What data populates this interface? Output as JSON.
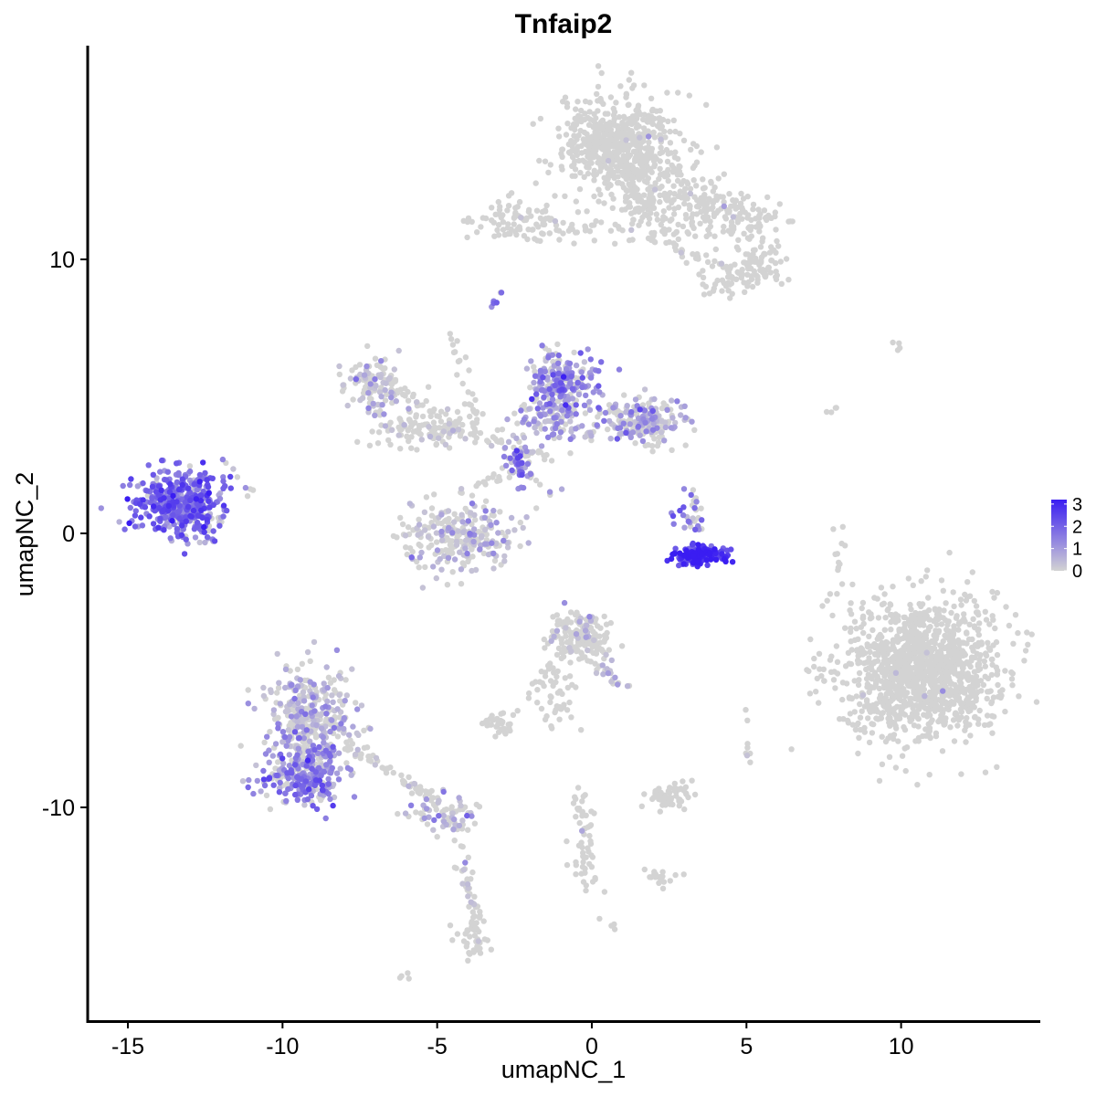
{
  "chart_data": {
    "type": "scatter",
    "title": "Tnfaip2",
    "xlabel": "umapNC_1",
    "ylabel": "umapNC_2",
    "xlim": [
      -16.3,
      14.5
    ],
    "ylim": [
      -17.8,
      17.8
    ],
    "x_ticks": [
      -15,
      -10,
      -5,
      0,
      5,
      10
    ],
    "x_tick_labels": [
      "-15",
      "-10",
      "-5",
      "0",
      "5",
      "10"
    ],
    "y_ticks": [
      -10,
      0,
      10
    ],
    "y_tick_labels": [
      "-10",
      "0",
      "10"
    ],
    "grid": false,
    "color_scale": {
      "low": "#d3d3d3",
      "high": "#3a1df2",
      "min": 0,
      "max": 3.2,
      "legend_ticks": [
        0,
        1,
        2,
        3
      ],
      "legend_tick_labels": [
        "0",
        "1",
        "2",
        "3"
      ],
      "legend_position": "right"
    },
    "clusters": [
      {
        "cx": 0.9,
        "cy": 14.2,
        "sx": 0.9,
        "sy": 0.9,
        "n": 600,
        "expr_mean": 0.05,
        "expr_frac": 0.02
      },
      {
        "cx": 2.6,
        "cy": 12.2,
        "sx": 1.0,
        "sy": 0.7,
        "n": 170,
        "expr_mean": 0.1,
        "expr_frac": 0.03
      },
      {
        "cx": 4.7,
        "cy": 11.5,
        "sx": 0.9,
        "sy": 0.5,
        "n": 110,
        "expr_mean": 0.1,
        "expr_frac": 0.03
      },
      {
        "cx": 5.3,
        "cy": 9.8,
        "sx": 0.5,
        "sy": 0.4,
        "n": 70,
        "expr_mean": 0.05,
        "expr_frac": 0.02
      },
      {
        "cx": 4.5,
        "cy": 9.1,
        "sx": 0.5,
        "sy": 0.3,
        "n": 35,
        "expr_mean": 0.05,
        "expr_frac": 0.02
      },
      {
        "cx": -2.4,
        "cy": 11.5,
        "sx": 0.7,
        "sy": 0.4,
        "n": 80,
        "expr_mean": 0.1,
        "expr_frac": 0.04
      },
      {
        "cx": -0.6,
        "cy": 11.1,
        "sx": 0.8,
        "sy": 0.25,
        "n": 40,
        "expr_mean": 0.1,
        "expr_frac": 0.04
      },
      {
        "cx": -7.0,
        "cy": 5.4,
        "sx": 0.45,
        "sy": 0.5,
        "n": 110,
        "expr_mean": 0.5,
        "expr_frac": 0.45
      },
      {
        "cx": -5.2,
        "cy": 3.8,
        "sx": 0.9,
        "sy": 0.35,
        "n": 120,
        "expr_mean": 0.2,
        "expr_frac": 0.15
      },
      {
        "cx": -4.3,
        "cy": -0.1,
        "sx": 0.9,
        "sy": 0.6,
        "n": 260,
        "expr_mean": 0.4,
        "expr_frac": 0.4
      },
      {
        "cx": -0.9,
        "cy": 5.6,
        "sx": 0.55,
        "sy": 0.6,
        "n": 200,
        "expr_mean": 1.2,
        "expr_frac": 0.75
      },
      {
        "cx": -1.2,
        "cy": 4.2,
        "sx": 0.6,
        "sy": 0.5,
        "n": 110,
        "expr_mean": 0.9,
        "expr_frac": 0.6
      },
      {
        "cx": 1.6,
        "cy": 4.1,
        "sx": 0.7,
        "sy": 0.45,
        "n": 200,
        "expr_mean": 0.8,
        "expr_frac": 0.55
      },
      {
        "cx": -2.4,
        "cy": 2.6,
        "sx": 0.2,
        "sy": 0.25,
        "n": 25,
        "expr_mean": 1.8,
        "expr_frac": 0.9
      },
      {
        "cx": -13.4,
        "cy": 1.1,
        "sx": 0.7,
        "sy": 0.6,
        "n": 420,
        "expr_mean": 1.7,
        "expr_frac": 0.93
      },
      {
        "cx": -12.5,
        "cy": 0.3,
        "sx": 0.3,
        "sy": 0.4,
        "n": 35,
        "expr_mean": 1.5,
        "expr_frac": 0.9
      },
      {
        "cx": 3.5,
        "cy": -0.8,
        "sx": 0.4,
        "sy": 0.16,
        "n": 180,
        "expr_mean": 2.6,
        "expr_frac": 0.98
      },
      {
        "cx": 3.2,
        "cy": 0.8,
        "sx": 0.25,
        "sy": 0.45,
        "n": 30,
        "expr_mean": 1.3,
        "expr_frac": 0.8
      },
      {
        "cx": 10.7,
        "cy": -5.0,
        "sx": 1.2,
        "sy": 1.3,
        "n": 1300,
        "expr_mean": 0.02,
        "expr_frac": 0.005
      },
      {
        "cx": -0.4,
        "cy": -3.8,
        "sx": 0.5,
        "sy": 0.45,
        "n": 160,
        "expr_mean": 0.3,
        "expr_frac": 0.2
      },
      {
        "cx": -1.1,
        "cy": -5.8,
        "sx": 0.3,
        "sy": 0.8,
        "n": 40,
        "expr_mean": 0.05,
        "expr_frac": 0.02
      },
      {
        "cx": -3.1,
        "cy": -6.9,
        "sx": 0.3,
        "sy": 0.2,
        "n": 35,
        "expr_mean": 0.05,
        "expr_frac": 0.02
      },
      {
        "cx": 2.5,
        "cy": -9.6,
        "sx": 0.4,
        "sy": 0.2,
        "n": 55,
        "expr_mean": 0.05,
        "expr_frac": 0.02
      },
      {
        "cx": -0.2,
        "cy": -11.8,
        "sx": 0.2,
        "sy": 0.9,
        "n": 40,
        "expr_mean": 0.02,
        "expr_frac": 0.01
      },
      {
        "cx": 2.2,
        "cy": -12.6,
        "sx": 0.3,
        "sy": 0.15,
        "n": 20,
        "expr_mean": 0.02,
        "expr_frac": 0.01
      },
      {
        "cx": -9.1,
        "cy": -6.5,
        "sx": 0.7,
        "sy": 0.8,
        "n": 320,
        "expr_mean": 0.6,
        "expr_frac": 0.55
      },
      {
        "cx": -9.3,
        "cy": -8.8,
        "sx": 0.75,
        "sy": 0.55,
        "n": 260,
        "expr_mean": 1.3,
        "expr_frac": 0.8
      },
      {
        "cx": -4.8,
        "cy": -10.2,
        "sx": 0.6,
        "sy": 0.4,
        "n": 70,
        "expr_mean": 0.5,
        "expr_frac": 0.4
      },
      {
        "cx": -3.8,
        "cy": -14.6,
        "sx": 0.25,
        "sy": 0.5,
        "n": 40,
        "expr_mean": 0.05,
        "expr_frac": 0.02
      },
      {
        "cx": 8.0,
        "cy": -1.0,
        "sx": 0.1,
        "sy": 0.5,
        "n": 12,
        "expr_mean": 0.02,
        "expr_frac": 0.01
      },
      {
        "cx": 5.1,
        "cy": -7.5,
        "sx": 0.1,
        "sy": 0.5,
        "n": 8,
        "expr_mean": 0.02,
        "expr_frac": 0.01
      }
    ],
    "trails": [
      {
        "from": [
          -6.7,
          5.6
        ],
        "to": [
          -4.3,
          3.8
        ],
        "n": 30,
        "expr_mean": 0.1,
        "expr_frac": 0.05
      },
      {
        "from": [
          -4.6,
          3.9
        ],
        "to": [
          -1.3,
          2.8
        ],
        "n": 40,
        "expr_mean": 0.3,
        "expr_frac": 0.2
      },
      {
        "from": [
          -4.6,
          7.4
        ],
        "to": [
          -3.6,
          3.6
        ],
        "n": 25,
        "expr_mean": 0.05,
        "expr_frac": 0.03
      },
      {
        "from": [
          -2.7,
          8.9
        ],
        "to": [
          -3.1,
          8.4
        ],
        "n": 6,
        "expr_mean": 1.2,
        "expr_frac": 0.6
      },
      {
        "from": [
          -2.9,
          3.1
        ],
        "to": [
          -1.0,
          1.3
        ],
        "n": 18,
        "expr_mean": 0.4,
        "expr_frac": 0.3
      },
      {
        "from": [
          -2.3,
          2.8
        ],
        "to": [
          -2.3,
          1.6
        ],
        "n": 10,
        "expr_mean": 1.6,
        "expr_frac": 0.85
      },
      {
        "from": [
          -4.3,
          1.5
        ],
        "to": [
          -2.4,
          2.4
        ],
        "n": 20,
        "expr_mean": 0.2,
        "expr_frac": 0.1
      },
      {
        "from": [
          -11.9,
          2.7
        ],
        "to": [
          -11.0,
          1.4
        ],
        "n": 8,
        "expr_mean": 1.0,
        "expr_frac": 0.6
      },
      {
        "from": [
          1.2,
          13.5
        ],
        "to": [
          1.6,
          11.2
        ],
        "n": 25,
        "expr_mean": 0.05,
        "expr_frac": 0.03
      },
      {
        "from": [
          1.8,
          11.0
        ],
        "to": [
          4.6,
          9.4
        ],
        "n": 40,
        "expr_mean": 0.05,
        "expr_frac": 0.03
      },
      {
        "from": [
          0.0,
          -4.5
        ],
        "to": [
          1.1,
          -5.7
        ],
        "n": 20,
        "expr_mean": 0.5,
        "expr_frac": 0.4
      },
      {
        "from": [
          -0.9,
          -4.1
        ],
        "to": [
          -2.0,
          -6.2
        ],
        "n": 18,
        "expr_mean": 0.05,
        "expr_frac": 0.02
      },
      {
        "from": [
          -0.6,
          -9.3
        ],
        "to": [
          -0.2,
          -11.0
        ],
        "n": 18,
        "expr_mean": 0.02,
        "expr_frac": 0.01
      },
      {
        "from": [
          -8.0,
          -7.6
        ],
        "to": [
          -5.0,
          -9.8
        ],
        "n": 60,
        "expr_mean": 0.2,
        "expr_frac": 0.15
      },
      {
        "from": [
          -4.4,
          -10.3
        ],
        "to": [
          -3.9,
          -13.8
        ],
        "n": 30,
        "expr_mean": 0.6,
        "expr_frac": 0.5
      },
      {
        "from": [
          -3.9,
          -13.2
        ],
        "to": [
          -3.6,
          -15.3
        ],
        "n": 15,
        "expr_mean": 0.02,
        "expr_frac": 0.01
      },
      {
        "from": [
          7.6,
          4.7
        ],
        "to": [
          8.0,
          3.8
        ],
        "n": 4,
        "expr_mean": 0.02,
        "expr_frac": 0.01
      },
      {
        "from": [
          9.4,
          6.8
        ],
        "to": [
          10.0,
          6.8
        ],
        "n": 4,
        "expr_mean": 0.02,
        "expr_frac": 0.01
      },
      {
        "from": [
          -6.2,
          -16.3
        ],
        "to": [
          -6.0,
          -16.1
        ],
        "n": 4,
        "expr_mean": 0.02,
        "expr_frac": 0.01
      },
      {
        "from": [
          0.5,
          -14.1
        ],
        "to": [
          0.7,
          -14.3
        ],
        "n": 4,
        "expr_mean": 0.02,
        "expr_frac": 0.01
      },
      {
        "from": [
          3.1,
          -9.0
        ],
        "to": [
          3.1,
          -9.6
        ],
        "n": 4,
        "expr_mean": 0.02,
        "expr_frac": 0.01
      }
    ]
  }
}
